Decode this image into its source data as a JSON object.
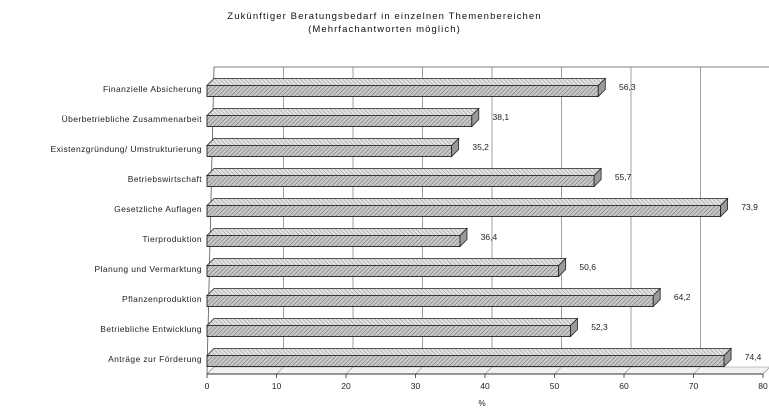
{
  "chart_data": {
    "type": "bar",
    "orientation": "horizontal",
    "title": "Zukünftiger Beratungsbedarf in einzelnen Themenbereichen",
    "subtitle": "(Mehrfachantworten möglich)",
    "xlabel": "%",
    "ylabel": "",
    "xlim": [
      0,
      80
    ],
    "xticks": [
      "0",
      "10",
      "20",
      "30",
      "40",
      "50",
      "60",
      "70",
      "80"
    ],
    "grid": true,
    "categories": [
      "Finanzielle Absicherung",
      "Überbetriebliche Zusammenarbeit",
      "Existenzgründung/ Umstrukturierung",
      "Betriebswirtschaft",
      "Gesetzliche Auflagen",
      "Tierproduktion",
      "Planung und Vermarktung",
      "Pflanzenproduktion",
      "Betriebliche Entwicklung",
      "Anträge zur Förderung"
    ],
    "values": [
      56.3,
      38.1,
      35.2,
      55.7,
      73.9,
      36.4,
      50.6,
      64.2,
      52.3,
      74.4
    ],
    "value_labels": [
      "56,3",
      "38,1",
      "35,2",
      "55,7",
      "73,9",
      "36,4",
      "50,6",
      "64,2",
      "52,3",
      "74,4"
    ]
  }
}
